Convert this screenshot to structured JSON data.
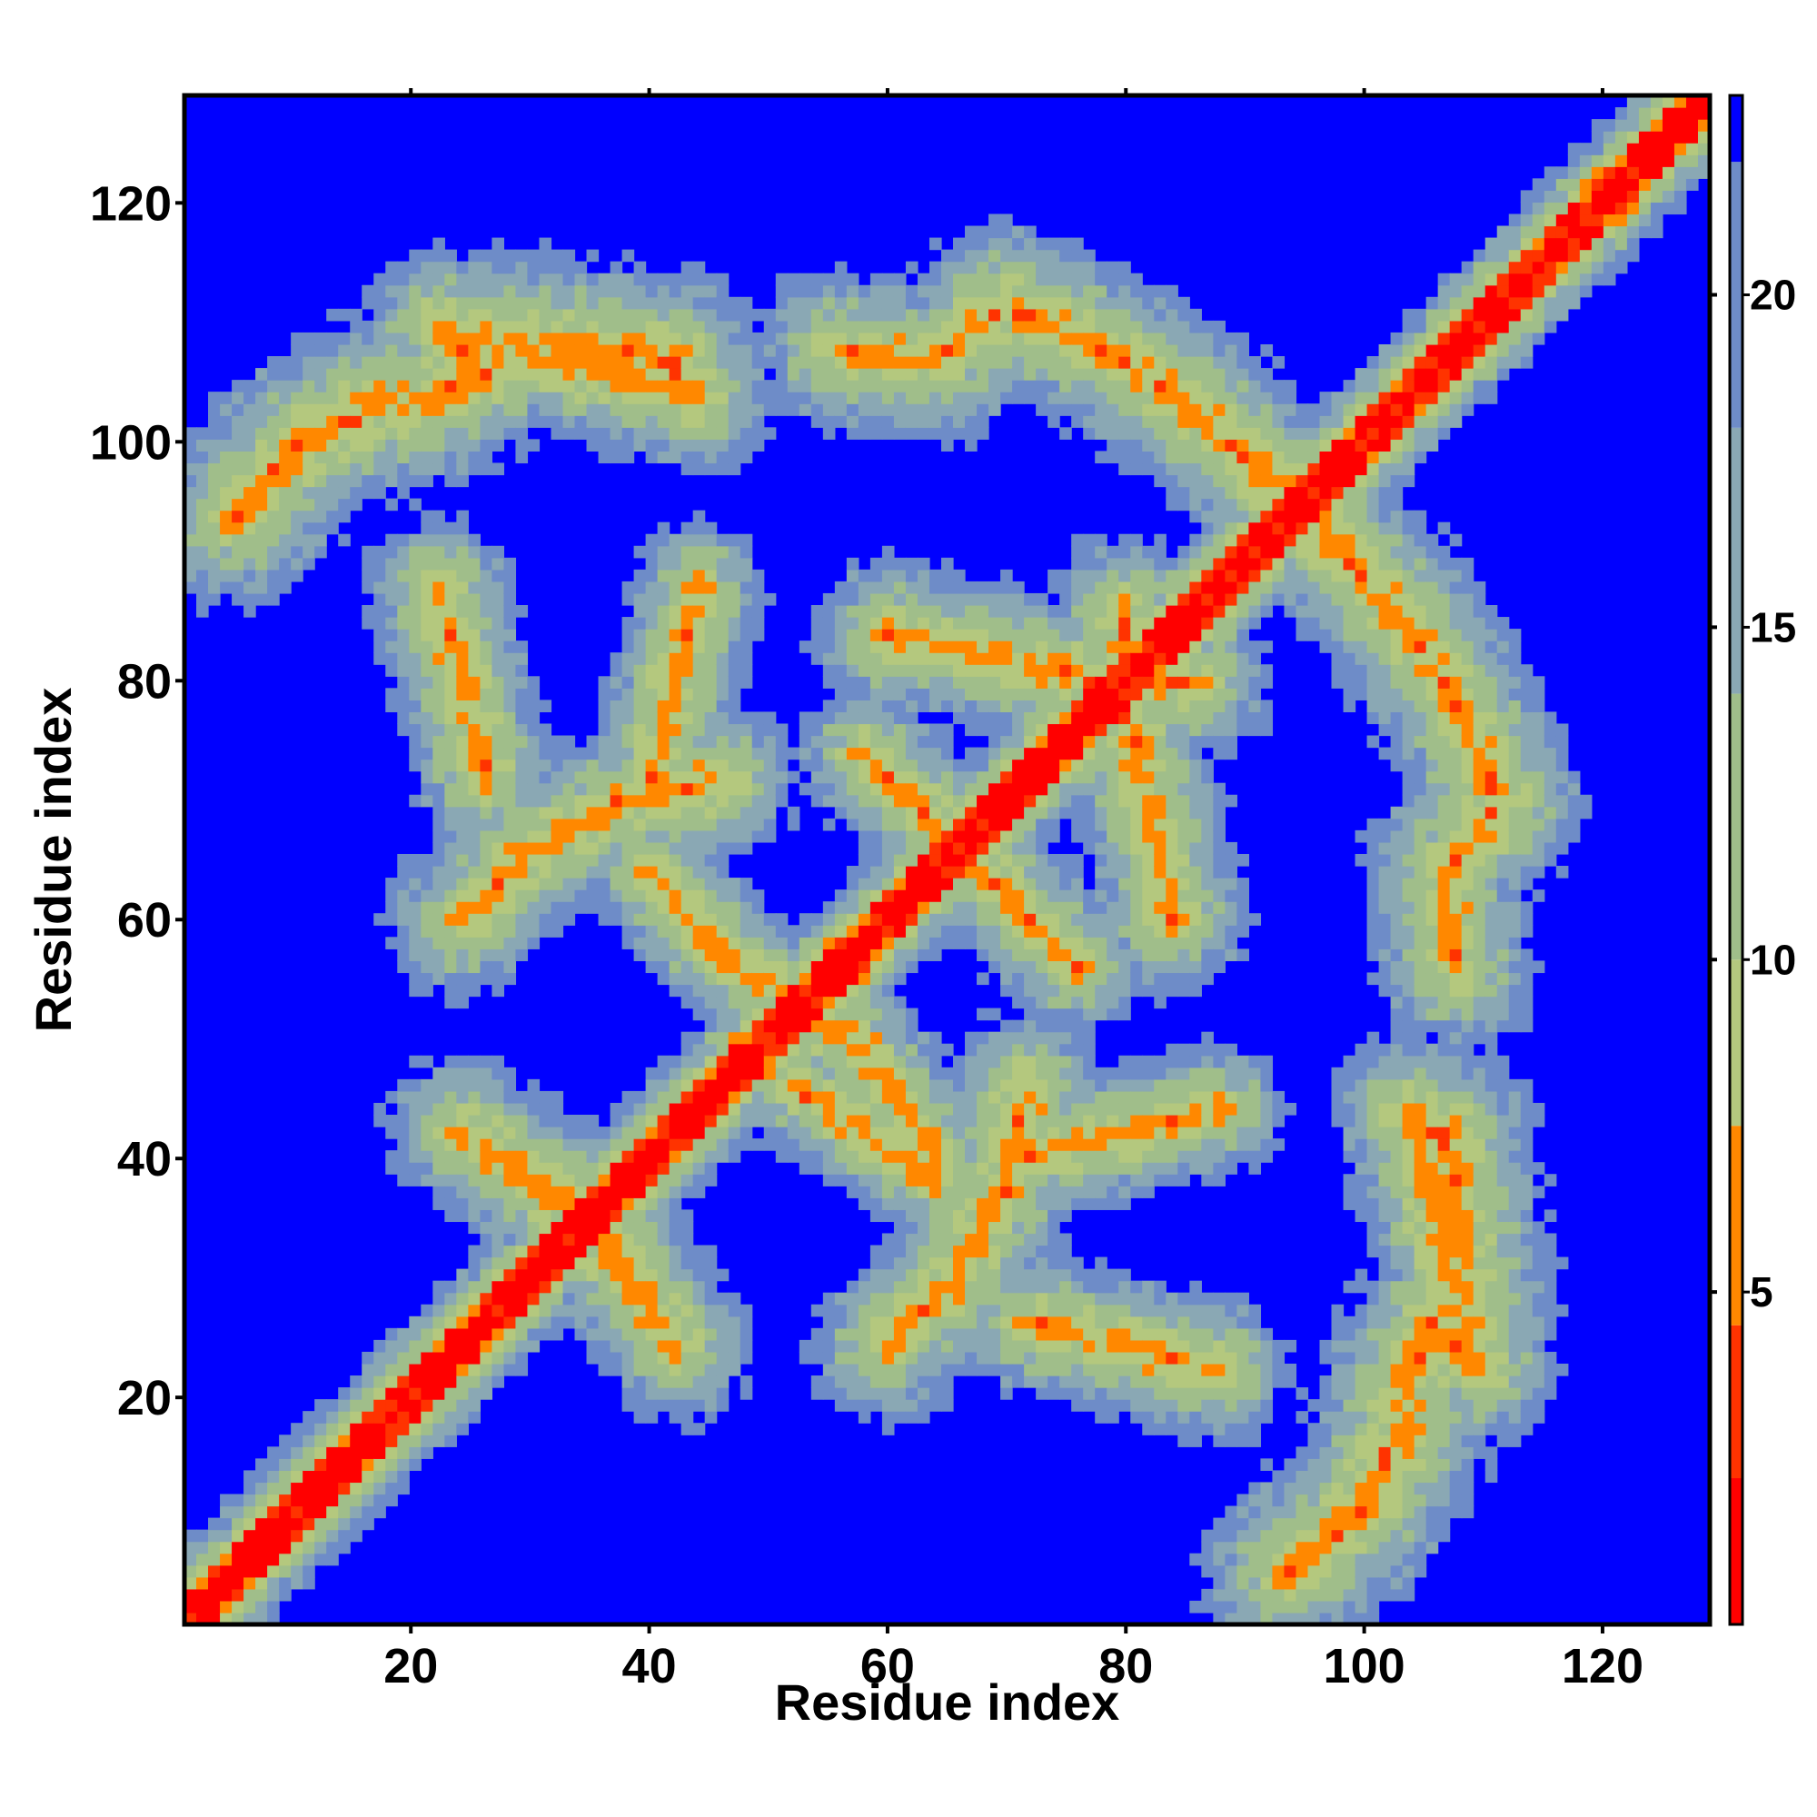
{
  "chart_data": {
    "type": "heatmap",
    "description_units": "distance map (residue–residue)",
    "xlabel": "Residue index",
    "ylabel": "Residue index",
    "xlim": [
      1,
      129
    ],
    "ylim": [
      1,
      129
    ],
    "x_ticks": [
      20,
      40,
      60,
      80,
      100,
      120
    ],
    "y_ticks": [
      20,
      40,
      60,
      80,
      100,
      120
    ],
    "grid": false,
    "colorbar": {
      "range": [
        0,
        23
      ],
      "ticks": [
        5,
        10,
        15,
        20
      ],
      "placement": "right",
      "bands": [
        {
          "from": 0,
          "to": 2.2,
          "color": "#ff0000"
        },
        {
          "from": 2.2,
          "to": 4.5,
          "color": "#ff3300"
        },
        {
          "from": 4.5,
          "to": 7.5,
          "color": "#ff8800"
        },
        {
          "from": 7.5,
          "to": 10.0,
          "color": "#b4c87e"
        },
        {
          "from": 10.0,
          "to": 14.0,
          "color": "#a0be8a"
        },
        {
          "from": 14.0,
          "to": 18.0,
          "color": "#8aa8b4"
        },
        {
          "from": 18.0,
          "to": 22.0,
          "color": "#6e8cc8"
        },
        {
          "from": 22.0,
          "to": 23.0,
          "color": "#0000ff"
        }
      ]
    },
    "background_color": "#0000ff",
    "n_residues": 129,
    "diagonal_band_halfwidth": 4,
    "contact_features": [
      {
        "name": "loop-top-left",
        "path": [
          [
            5,
            94
          ],
          [
            10,
            100
          ],
          [
            16,
            103
          ],
          [
            22,
            104
          ],
          [
            28,
            109
          ],
          [
            36,
            108
          ],
          [
            42,
            107
          ]
        ],
        "width": 3.5
      },
      {
        "name": "loop-bottom-right",
        "path": [
          [
            94,
            5
          ],
          [
            100,
            10
          ],
          [
            103,
            16
          ],
          [
            104,
            22
          ],
          [
            109,
            28
          ],
          [
            108,
            36
          ],
          [
            107,
            42
          ]
        ],
        "width": 3.5
      },
      {
        "name": "arm-upper",
        "path": [
          [
            56,
            108
          ],
          [
            64,
            107
          ],
          [
            70,
            112
          ],
          [
            78,
            108
          ],
          [
            86,
            103
          ],
          [
            90,
            99
          ],
          [
            94,
            96
          ]
        ],
        "width": 3.2
      },
      {
        "name": "arm-right",
        "path": [
          [
            108,
            56
          ],
          [
            107,
            64
          ],
          [
            112,
            70
          ],
          [
            108,
            78
          ],
          [
            103,
            86
          ],
          [
            99,
            90
          ],
          [
            96,
            94
          ]
        ],
        "width": 3.2
      },
      {
        "name": "cross-center-a",
        "path": [
          [
            40,
            64
          ],
          [
            46,
            57
          ],
          [
            52,
            53
          ],
          [
            58,
            49
          ],
          [
            64,
            40
          ]
        ],
        "width": 2.6
      },
      {
        "name": "cross-center-b",
        "path": [
          [
            58,
            74
          ],
          [
            63,
            69
          ],
          [
            67,
            65
          ],
          [
            72,
            60
          ],
          [
            76,
            56
          ]
        ],
        "width": 2.6
      },
      {
        "name": "cross-lower",
        "path": [
          [
            52,
            46
          ],
          [
            58,
            42
          ],
          [
            64,
            38
          ]
        ],
        "width": 2.4
      },
      {
        "name": "left-block-60",
        "path": [
          [
            24,
            60
          ],
          [
            30,
            66
          ],
          [
            38,
            70
          ],
          [
            46,
            72
          ]
        ],
        "width": 3.0
      },
      {
        "name": "lower-block-60",
        "path": [
          [
            60,
            24
          ],
          [
            66,
            30
          ],
          [
            70,
            38
          ],
          [
            72,
            46
          ]
        ],
        "width": 3.0
      },
      {
        "name": "left-block-40",
        "path": [
          [
            24,
            42
          ],
          [
            30,
            38
          ],
          [
            36,
            34
          ]
        ],
        "width": 3.0
      },
      {
        "name": "lower-block-40",
        "path": [
          [
            42,
            24
          ],
          [
            38,
            30
          ],
          [
            34,
            36
          ]
        ],
        "width": 3.0
      },
      {
        "name": "upper-mid-80",
        "path": [
          [
            60,
            84
          ],
          [
            70,
            82
          ],
          [
            78,
            80
          ],
          [
            86,
            80
          ]
        ],
        "width": 3.0
      },
      {
        "name": "right-mid-80",
        "path": [
          [
            84,
            60
          ],
          [
            82,
            70
          ],
          [
            80,
            78
          ],
          [
            80,
            86
          ]
        ],
        "width": 3.0
      },
      {
        "name": "left-col-80",
        "path": [
          [
            22,
            88
          ],
          [
            24,
            80
          ],
          [
            26,
            72
          ]
        ],
        "width": 2.8
      },
      {
        "name": "bottom-row-80",
        "path": [
          [
            88,
            22
          ],
          [
            80,
            24
          ],
          [
            72,
            26
          ]
        ],
        "width": 2.8
      },
      {
        "name": "mid-blob-40-60",
        "path": [
          [
            72,
            40
          ],
          [
            80,
            42
          ],
          [
            88,
            44
          ]
        ],
        "width": 2.6
      },
      {
        "name": "mid-blob-60-40",
        "path": [
          [
            40,
            72
          ],
          [
            42,
            80
          ],
          [
            44,
            88
          ]
        ],
        "width": 2.6
      },
      {
        "name": "far-corner-a",
        "path": [
          [
            106,
            26
          ],
          [
            110,
            22
          ],
          [
            104,
            44
          ],
          [
            108,
            40
          ]
        ],
        "width": 3.0
      },
      {
        "name": "far-corner-b",
        "path": [
          [
            26,
            106
          ],
          [
            22,
            110
          ],
          [
            44,
            104
          ],
          [
            40,
            108
          ]
        ],
        "width": 3.0
      }
    ]
  }
}
